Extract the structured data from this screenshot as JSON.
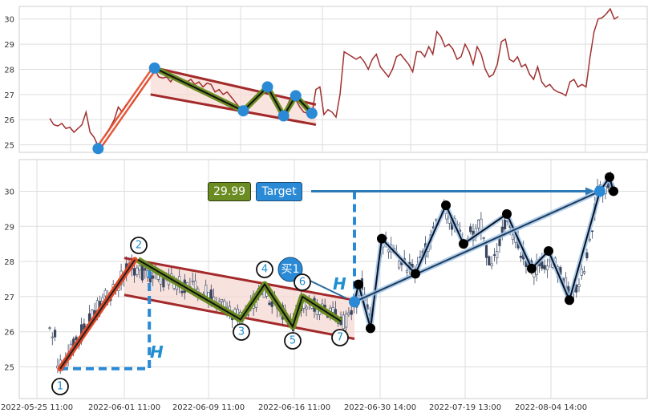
{
  "colors": {
    "price_line": "#a03030",
    "channel": "#a3292a",
    "channel_fill": "#f6d8d2",
    "wave_outer": "#6b8c23",
    "wave_inner": "#111111",
    "marker": "#2a8ad6",
    "target_line": "#2a7ab8",
    "dash": "#2a8ad6",
    "candle_up": "#ffffff",
    "candle_down": "#3a4660",
    "black_dot": "#000000",
    "price_box": "#6b8c23",
    "target_box": "#2a8ad6"
  },
  "chart_data": [
    {
      "type": "line",
      "panel": "top",
      "ylim": [
        24.7,
        30.5
      ],
      "yticks": [
        "25",
        "26",
        "27",
        "28",
        "29",
        "30"
      ],
      "grid": true,
      "series": [
        {
          "values": [
            26.05,
            25.8,
            25.75,
            25.85,
            25.65,
            25.7,
            25.5,
            25.65,
            25.8,
            26.3,
            25.5,
            25.3,
            24.95,
            25.0,
            25.4,
            25.7,
            26.0,
            26.5,
            26.3,
            26.6,
            26.6,
            26.8,
            27.0,
            27.3,
            27.5,
            27.8,
            28.05,
            27.7,
            27.65,
            27.7,
            27.5,
            27.75,
            27.6,
            27.55,
            27.5,
            27.6,
            27.4,
            27.5,
            27.3,
            27.45,
            27.4,
            27.1,
            27.2,
            27.0,
            27.1,
            26.9,
            26.7,
            26.5,
            26.35,
            26.5,
            26.7,
            26.9,
            27.1,
            27.25,
            27.3,
            27.0,
            26.8,
            26.5,
            26.2,
            26.6,
            26.95,
            26.8,
            26.5,
            26.3,
            26.25,
            26.2,
            27.2,
            27.3,
            26.2,
            26.4,
            26.3,
            26.1,
            27.0,
            28.7,
            28.6,
            28.5,
            28.4,
            28.5,
            28.3,
            28.0,
            28.4,
            28.6,
            28.1,
            27.9,
            27.7,
            28.0,
            28.5,
            28.6,
            28.4,
            28.2,
            27.9,
            28.7,
            28.7,
            28.5,
            28.9,
            28.6,
            29.5,
            29.3,
            28.9,
            29.0,
            28.8,
            28.4,
            28.5,
            29.0,
            28.7,
            28.2,
            28.9,
            28.6,
            28.0,
            27.7,
            27.8,
            28.2,
            29.1,
            29.2,
            28.4,
            28.3,
            28.5,
            28.1,
            28.2,
            27.8,
            27.6,
            28.1,
            27.5,
            27.3,
            27.4,
            27.2,
            27.1,
            27.05,
            26.95,
            27.5,
            27.6,
            27.3,
            27.4,
            27.3,
            28.5,
            29.5,
            30.0,
            30.05,
            30.2,
            30.4,
            30.0,
            30.1
          ]
        }
      ],
      "pattern_points": [
        {
          "x_index": 12,
          "y": 24.85
        },
        {
          "x_index": 26,
          "y": 28.05
        },
        {
          "x_index": 48,
          "y": 26.35
        },
        {
          "x_index": 54,
          "y": 27.3
        },
        {
          "x_index": 58,
          "y": 26.15
        },
        {
          "x_index": 61,
          "y": 26.95
        },
        {
          "x_index": 65,
          "y": 26.25
        }
      ]
    },
    {
      "type": "candlestick",
      "panel": "bottom",
      "ylim": [
        24.1,
        30.9
      ],
      "yticks": [
        "25",
        "26",
        "27",
        "28",
        "29",
        "30"
      ],
      "xticks": [
        "2022-05-25 11:00",
        "2022-06-01 11:00",
        "2022-06-09 11:00",
        "2022-06-16 11:00",
        "2022-06-30 14:00",
        "2022-07-19 13:00",
        "2022-08-04 14:00"
      ],
      "grid": true,
      "wave_points": [
        {
          "label": "1",
          "x_index": 0,
          "y": 24.95
        },
        {
          "label": "2",
          "x_index": 12,
          "y": 28.05
        },
        {
          "label": "3",
          "x_index": 28,
          "y": 26.35
        },
        {
          "label": "4",
          "x_index": 34,
          "y": 27.35
        },
        {
          "label": "5",
          "x_index": 39,
          "y": 26.15
        },
        {
          "label": "6",
          "x_index": 41,
          "y": 27.0
        },
        {
          "label": "7",
          "x_index": 47,
          "y": 26.3
        }
      ],
      "breakout_path": [
        26.85,
        27.35,
        26.1,
        28.65,
        27.65,
        29.6,
        28.5,
        29.35,
        27.8,
        28.3,
        26.9,
        30.0,
        30.4,
        30.0
      ],
      "target_price": "29.99",
      "target_label": "Target",
      "buy_label": "买1",
      "height_labels": [
        "H",
        "H"
      ]
    }
  ]
}
